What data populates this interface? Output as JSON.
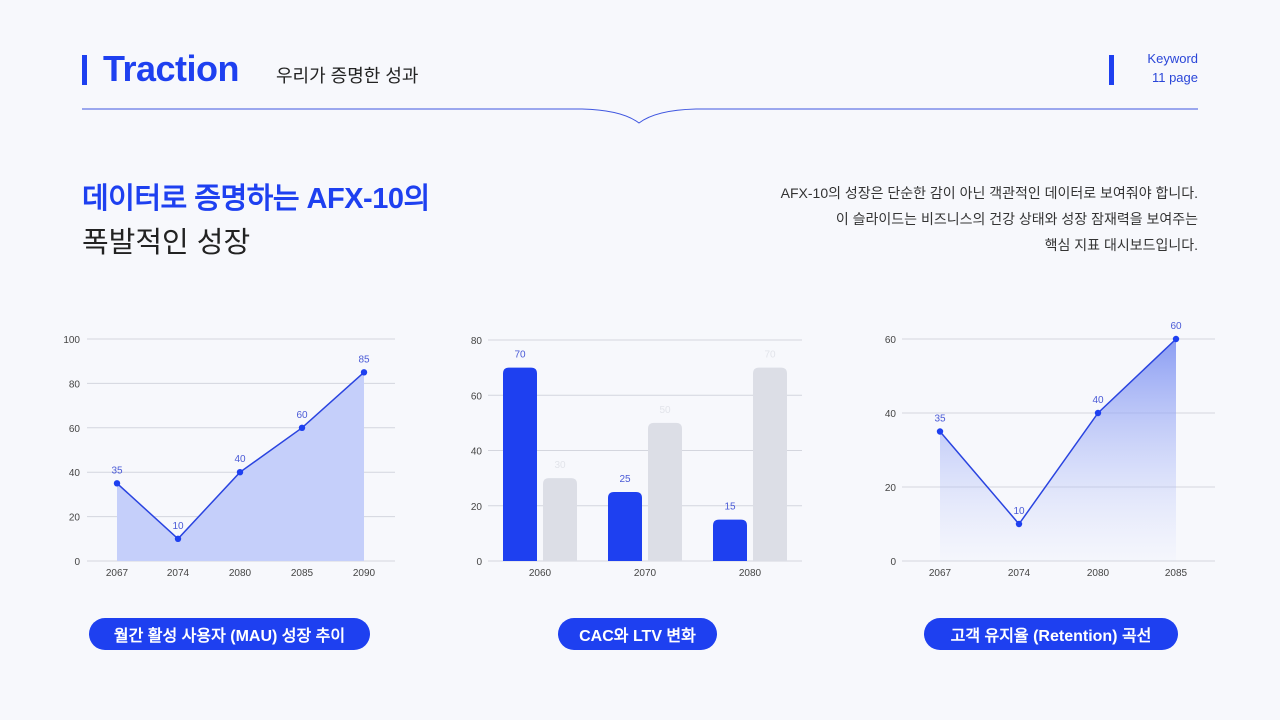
{
  "header": {
    "title": "Traction",
    "subtitle": "우리가 증명한 성과",
    "keyword_label": "Keyword",
    "page_label": "11 page"
  },
  "headline": {
    "line1": "데이터로 증명하는 AFX-10의",
    "line2": "폭발적인 성장"
  },
  "description": {
    "line1": "AFX-10의 성장은 단순한 감이 아닌 객관적인 데이터로 보여줘야 합니다.",
    "line2": "이 슬라이드는 비즈니스의 건강 상태와 성장 잠재력을 보여주는",
    "line3": "핵심 지표 대시보드입니다."
  },
  "colors": {
    "accent": "#1e40f0",
    "bar_secondary": "#dcdee6",
    "area_fill": "#c5cffa",
    "grid": "#d4d6de",
    "background": "#f7f8fc"
  },
  "chart_labels": {
    "mau": "월간 활성 사용자 (MAU) 성장 추이",
    "cac_ltv": "CAC와 LTV 변화",
    "retention": "고객 유지율 (Retention) 곡선"
  },
  "chart_data": [
    {
      "type": "area",
      "title": "월간 활성 사용자 (MAU) 성장 추이",
      "categories": [
        "2067",
        "2074",
        "2080",
        "2085",
        "2090"
      ],
      "values": [
        35,
        10,
        40,
        60,
        85
      ],
      "yticks": [
        "0",
        "20",
        "40",
        "60",
        "80",
        "100"
      ],
      "ylim": [
        0,
        100
      ],
      "grid": true,
      "data_labels": true,
      "legend": "none"
    },
    {
      "type": "bar",
      "title": "CAC와 LTV 변화",
      "categories": [
        "2060",
        "2070",
        "2080"
      ],
      "series": [
        {
          "name": "CAC",
          "values": [
            70,
            25,
            15
          ],
          "color": "#1e40f0"
        },
        {
          "name": "LTV",
          "values": [
            30,
            50,
            70
          ],
          "color": "#dcdee6"
        }
      ],
      "yticks": [
        "0",
        "20",
        "40",
        "60",
        "80"
      ],
      "ylim": [
        0,
        80
      ],
      "grid": true,
      "data_labels": true,
      "legend": "none"
    },
    {
      "type": "area",
      "title": "고객 유지율 (Retention) 곡선",
      "categories": [
        "2067",
        "2074",
        "2080",
        "2085"
      ],
      "values": [
        35,
        10,
        40,
        60
      ],
      "yticks": [
        "0",
        "20",
        "40",
        "60"
      ],
      "ylim": [
        0,
        60
      ],
      "grid": true,
      "data_labels": true,
      "legend": "none"
    }
  ]
}
